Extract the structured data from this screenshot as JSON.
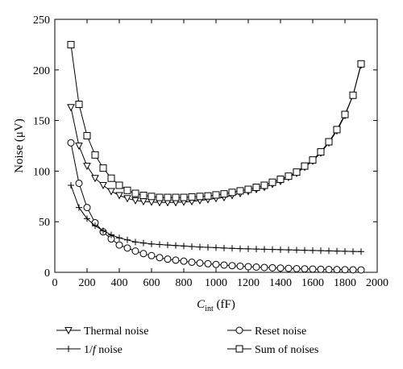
{
  "chart_data": {
    "type": "line",
    "ylabel": "Noise (μV)",
    "xlabel_main": "C",
    "xlabel_sub": "int",
    "xlabel_unit": " (fF)",
    "xlim": [
      0,
      2000
    ],
    "ylim": [
      0,
      250
    ],
    "xticks": [
      0,
      200,
      400,
      600,
      800,
      1000,
      1200,
      1400,
      1600,
      1800,
      2000
    ],
    "yticks": [
      0,
      50,
      100,
      150,
      200,
      250
    ],
    "grid": false,
    "legend_position": "bottom",
    "x": [
      100,
      150,
      200,
      250,
      300,
      350,
      400,
      450,
      500,
      550,
      600,
      650,
      700,
      750,
      800,
      850,
      900,
      950,
      1000,
      1050,
      1100,
      1150,
      1200,
      1250,
      1300,
      1350,
      1400,
      1450,
      1500,
      1550,
      1600,
      1650,
      1700,
      1750,
      1800,
      1850,
      1900
    ],
    "series": [
      {
        "name": "Thermal noise",
        "marker": "triangle-down",
        "values": [
          163,
          125,
          105,
          93,
          86,
          80,
          76,
          73,
          71,
          70,
          69.5,
          69,
          69,
          69,
          69.5,
          70,
          71,
          72,
          73,
          74,
          76,
          78,
          80,
          82,
          84,
          87,
          90,
          94,
          98,
          104,
          110,
          118,
          128,
          140,
          155,
          175,
          205
        ]
      },
      {
        "name": "Reset noise",
        "marker": "circle",
        "values": [
          128,
          88,
          64,
          49,
          40,
          33,
          27,
          24,
          21,
          18.5,
          16.5,
          14.5,
          13,
          12,
          11,
          10,
          9.2,
          8.5,
          7.8,
          7.2,
          6.6,
          6.1,
          5.6,
          5.2,
          4.8,
          4.5,
          4.2,
          3.9,
          3.6,
          3.4,
          3.2,
          3.0,
          2.8,
          2.7,
          2.6,
          2.5,
          2.4
        ]
      },
      {
        "name": "1/f noise",
        "marker": "plus",
        "values": [
          86,
          64,
          53,
          46,
          41,
          37,
          34,
          32,
          30,
          29,
          28,
          27.5,
          27,
          26.5,
          26,
          25.5,
          25,
          24.7,
          24.4,
          24,
          23.7,
          23.4,
          23.2,
          23,
          22.8,
          22.6,
          22.4,
          22.2,
          22,
          21.8,
          21.6,
          21.4,
          21.2,
          21,
          20.8,
          20.6,
          20.5
        ]
      },
      {
        "name": "Sum of noises",
        "marker": "square",
        "values": [
          225,
          166,
          135,
          116,
          103,
          93,
          86,
          81,
          78,
          76,
          75,
          74,
          74,
          74,
          74,
          74.5,
          75,
          75.5,
          76.5,
          77.5,
          79,
          80.5,
          82,
          84,
          86,
          89,
          92,
          95,
          99,
          105,
          111,
          119,
          129,
          141,
          156,
          175,
          206
        ]
      }
    ],
    "legend": [
      {
        "label": "Thermal noise",
        "marker": "triangle-down"
      },
      {
        "label": "Reset noise",
        "marker": "circle"
      },
      {
        "label": "1/f noise",
        "marker": "plus"
      },
      {
        "label": "Sum of noises",
        "marker": "square"
      }
    ]
  }
}
